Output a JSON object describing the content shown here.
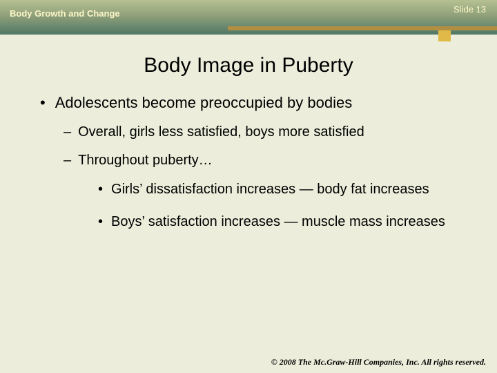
{
  "header": {
    "chapter": "Body Growth and Change",
    "slide_number": "Slide 13"
  },
  "title": "Body Image in Puberty",
  "bullets": {
    "l1_0": "Adolescents become preoccupied by bodies",
    "l2_0": "Overall, girls less satisfied, boys more satisfied",
    "l2_1": "Throughout puberty…",
    "l3_0": "Girls’ dissatisfaction increases — body fat increases",
    "l3_1": "Boys’ satisfaction increases — muscle mass increases"
  },
  "footer": "© 2008 The Mc.Graw-Hill Companies, Inc. All rights reserved.",
  "colors": {
    "slide_bg": "#eceedb",
    "header_grad_top": "#b6c192",
    "header_grad_bottom": "#4f7765",
    "accent_bar": "#b18f42",
    "accent_block": "#e0b948",
    "header_text": "#fdf6c8"
  }
}
